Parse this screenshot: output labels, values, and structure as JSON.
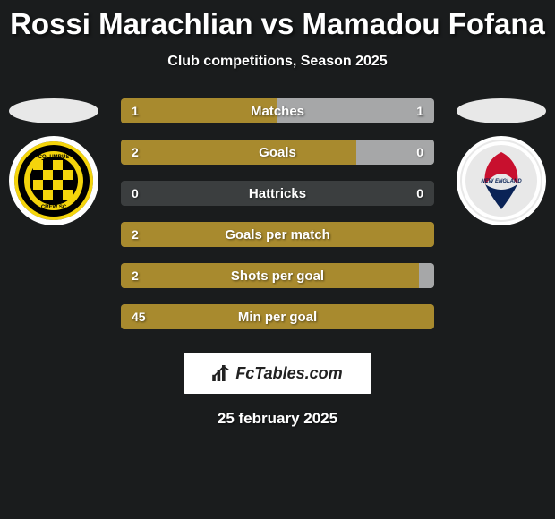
{
  "title": "Rossi Marachlian vs Mamadou Fofana",
  "subtitle": "Club competitions, Season 2025",
  "date": "25 february 2025",
  "brand": "FcTables.com",
  "colors": {
    "left_fill": "#a88a2e",
    "right_fill": "#a6a7a8",
    "bar_bg": "#3b3e3f",
    "background": "#1a1c1d"
  },
  "clubs": {
    "left": {
      "name": "Columbus Crew SC",
      "badge_bg": "#000000",
      "badge_accent": "#f4d40b"
    },
    "right": {
      "name": "New England Revolution",
      "badge_bg": "#e8e8e8"
    }
  },
  "bars": [
    {
      "label": "Matches",
      "left_val": "1",
      "right_val": "1",
      "left_pct": 50,
      "right_pct": 50
    },
    {
      "label": "Goals",
      "left_val": "2",
      "right_val": "0",
      "left_pct": 75,
      "right_pct": 25
    },
    {
      "label": "Hattricks",
      "left_val": "0",
      "right_val": "0",
      "left_pct": 0,
      "right_pct": 0
    },
    {
      "label": "Goals per match",
      "left_val": "2",
      "right_val": "",
      "left_pct": 100,
      "right_pct": 0
    },
    {
      "label": "Shots per goal",
      "left_val": "2",
      "right_val": "",
      "left_pct": 95,
      "right_pct": 5
    },
    {
      "label": "Min per goal",
      "left_val": "45",
      "right_val": "",
      "left_pct": 100,
      "right_pct": 0
    }
  ]
}
